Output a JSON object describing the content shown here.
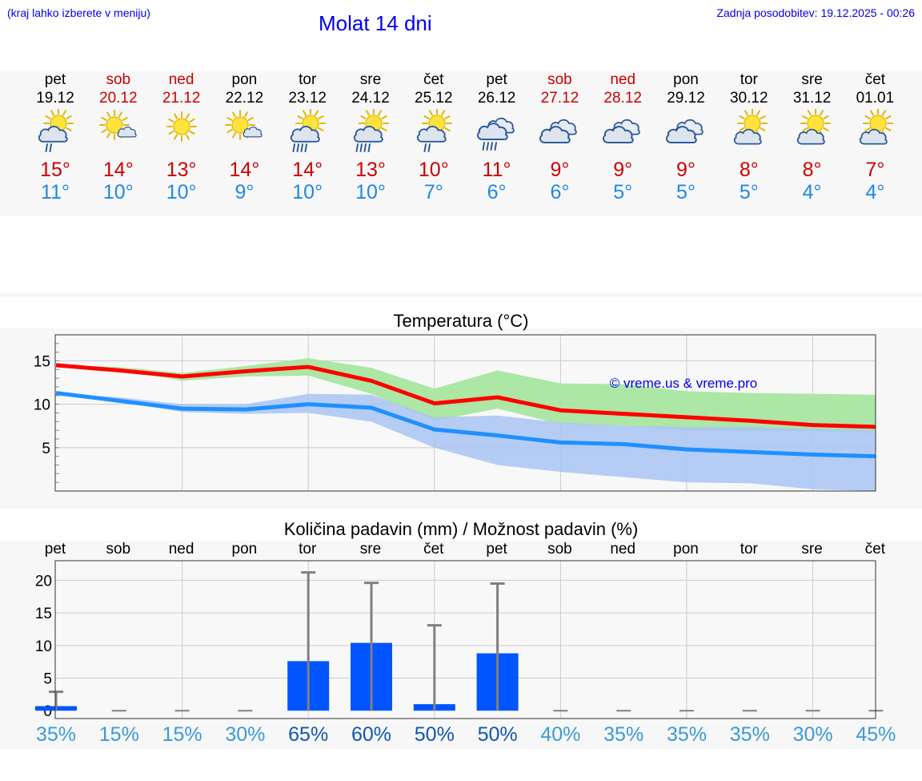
{
  "header": {
    "menu_hint": "(kraj lahko izberete v meniju)",
    "title": "Molat 14 dni",
    "last_update": "Zadnja posodobitev: 19.12.2025 - 00:26"
  },
  "days": [
    {
      "name": "pet",
      "date": "19.12",
      "weekend": false,
      "icon": "sun-cloud-rain-icon",
      "tmax": "15°",
      "tmin": "11°"
    },
    {
      "name": "sob",
      "date": "20.12",
      "weekend": true,
      "icon": "sun-small-cloud-icon",
      "tmax": "14°",
      "tmin": "10°"
    },
    {
      "name": "ned",
      "date": "21.12",
      "weekend": true,
      "icon": "sun-icon",
      "tmax": "13°",
      "tmin": "10°"
    },
    {
      "name": "pon",
      "date": "22.12",
      "weekend": false,
      "icon": "sun-small-cloud-icon",
      "tmax": "14°",
      "tmin": "9°"
    },
    {
      "name": "tor",
      "date": "23.12",
      "weekend": false,
      "icon": "sun-cloud-heavy-rain-icon",
      "tmax": "14°",
      "tmin": "10°"
    },
    {
      "name": "sre",
      "date": "24.12",
      "weekend": false,
      "icon": "sun-cloud-heavy-rain-icon",
      "tmax": "13°",
      "tmin": "10°"
    },
    {
      "name": "čet",
      "date": "25.12",
      "weekend": false,
      "icon": "sun-cloud-rain-icon",
      "tmax": "10°",
      "tmin": "7°"
    },
    {
      "name": "pet",
      "date": "26.12",
      "weekend": false,
      "icon": "cloud-heavy-rain-icon",
      "tmax": "11°",
      "tmin": "6°"
    },
    {
      "name": "sob",
      "date": "27.12",
      "weekend": true,
      "icon": "cloudy-icon",
      "tmax": "9°",
      "tmin": "6°"
    },
    {
      "name": "ned",
      "date": "28.12",
      "weekend": true,
      "icon": "cloudy-icon",
      "tmax": "9°",
      "tmin": "5°"
    },
    {
      "name": "pon",
      "date": "29.12",
      "weekend": false,
      "icon": "cloudy-icon",
      "tmax": "9°",
      "tmin": "5°"
    },
    {
      "name": "tor",
      "date": "30.12",
      "weekend": false,
      "icon": "sun-cloud-icon",
      "tmax": "8°",
      "tmin": "5°"
    },
    {
      "name": "sre",
      "date": "31.12",
      "weekend": false,
      "icon": "sun-cloud-icon",
      "tmax": "8°",
      "tmin": "4°"
    },
    {
      "name": "čet",
      "date": "01.01",
      "weekend": false,
      "icon": "sun-cloud-icon",
      "tmax": "7°",
      "tmin": "4°"
    }
  ],
  "colors": {
    "max_line": "#ff0000",
    "min_line": "#1e90ff",
    "max_band": "#a8e6a0",
    "min_band": "#a9c4f5",
    "bar": "#0055ff",
    "error_bar": "#808080"
  },
  "chart_data": [
    {
      "type": "line",
      "title": "Temperatura (°C)",
      "watermark": "© vreme.us & vreme.pro",
      "x": [
        0,
        1,
        2,
        3,
        4,
        5,
        6,
        7,
        8,
        9,
        10,
        11,
        12,
        13
      ],
      "ylim": [
        0,
        18
      ],
      "yticks": [
        "15",
        "10",
        "5"
      ],
      "series": [
        {
          "name": "max",
          "values": [
            14.5,
            13.9,
            13.2,
            13.8,
            14.3,
            12.7,
            10.1,
            10.8,
            9.3,
            8.9,
            8.5,
            8.1,
            7.6,
            7.4
          ]
        },
        {
          "name": "min",
          "values": [
            11.3,
            10.4,
            9.5,
            9.4,
            10.0,
            9.6,
            7.1,
            6.4,
            5.6,
            5.4,
            4.8,
            4.5,
            4.2,
            4.0
          ]
        }
      ],
      "max_band": {
        "low": [
          14.5,
          14.0,
          12.7,
          13.2,
          13.3,
          11.2,
          8.1,
          9.5,
          7.7,
          7.5,
          7.0,
          6.9,
          6.9,
          6.7
        ],
        "high": [
          14.5,
          14.3,
          13.6,
          14.4,
          15.3,
          14.2,
          11.8,
          13.9,
          12.4,
          12.3,
          11.5,
          11.3,
          11.2,
          11.1
        ]
      },
      "min_band": {
        "low": [
          11.3,
          10.3,
          9.1,
          8.9,
          9.0,
          8.0,
          5.0,
          3.0,
          2.2,
          1.6,
          1.0,
          0.9,
          0.2,
          0.0
        ],
        "high": [
          11.3,
          10.8,
          10.0,
          10.0,
          11.2,
          11.1,
          8.5,
          8.7,
          7.9,
          7.5,
          7.4,
          7.4,
          7.2,
          7.0
        ]
      }
    },
    {
      "type": "bar",
      "title": "Količina padavin (mm) / Možnost padavin (%)",
      "categories": [
        "pet",
        "sob",
        "ned",
        "pon",
        "tor",
        "sre",
        "čet",
        "pet",
        "sob",
        "ned",
        "pon",
        "tor",
        "sre",
        "čet"
      ],
      "values": [
        0.7,
        0,
        0,
        0,
        7.6,
        10.4,
        1.0,
        8.8,
        0,
        0,
        0,
        0,
        0,
        0
      ],
      "error_max": [
        2.9,
        0,
        0,
        0,
        21.2,
        19.6,
        13.1,
        19.5,
        0,
        0,
        0,
        0,
        0,
        0
      ],
      "ylim": [
        -1.2,
        23
      ],
      "yticks": [
        "20",
        "15",
        "10",
        "5",
        "0"
      ],
      "probability": [
        "35%",
        "15%",
        "15%",
        "30%",
        "65%",
        "60%",
        "50%",
        "50%",
        "40%",
        "35%",
        "35%",
        "35%",
        "30%",
        "45%"
      ],
      "probability_strong": [
        false,
        false,
        false,
        false,
        true,
        true,
        true,
        true,
        false,
        false,
        false,
        false,
        false,
        false
      ]
    }
  ]
}
